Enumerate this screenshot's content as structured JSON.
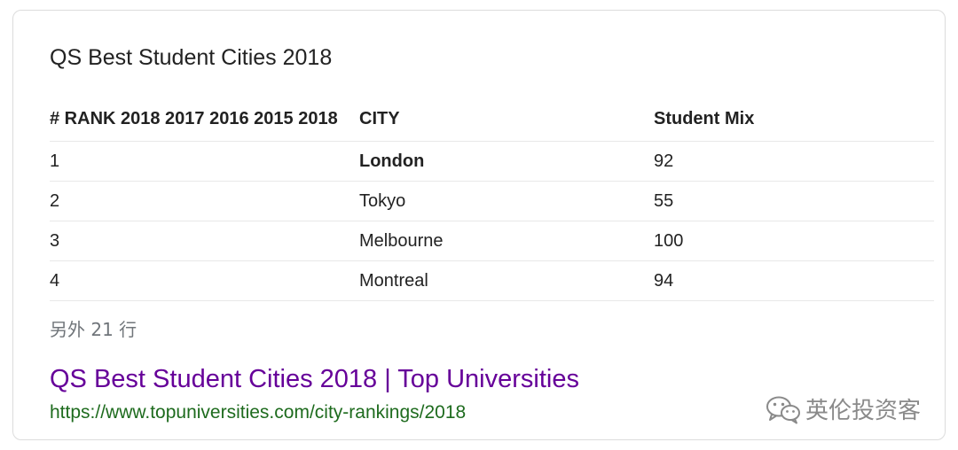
{
  "card": {
    "title": "QS Best Student Cities 2018",
    "table": {
      "headers": [
        "# RANK 2018 2017 2016 2015 2018",
        "CITY",
        "Student Mix"
      ],
      "rows": [
        {
          "rank": "1",
          "city": "London",
          "student_mix": "92"
        },
        {
          "rank": "2",
          "city": "Tokyo",
          "student_mix": "55"
        },
        {
          "rank": "3",
          "city": "Melbourne",
          "student_mix": "100"
        },
        {
          "rank": "4",
          "city": "Montreal",
          "student_mix": "94"
        }
      ]
    },
    "more_rows": "另外 21 行",
    "result": {
      "title": "QS Best Student Cities 2018 | Top Universities",
      "url": "https://www.topuniversities.com/city-rankings/2018"
    }
  },
  "watermark": {
    "text": "英伦投资客",
    "icon": "wechat-icon"
  },
  "colors": {
    "link_visited": "#660099",
    "url_green": "#1e6b1e",
    "muted_text": "#70757a",
    "border": "#dcdcdc"
  }
}
